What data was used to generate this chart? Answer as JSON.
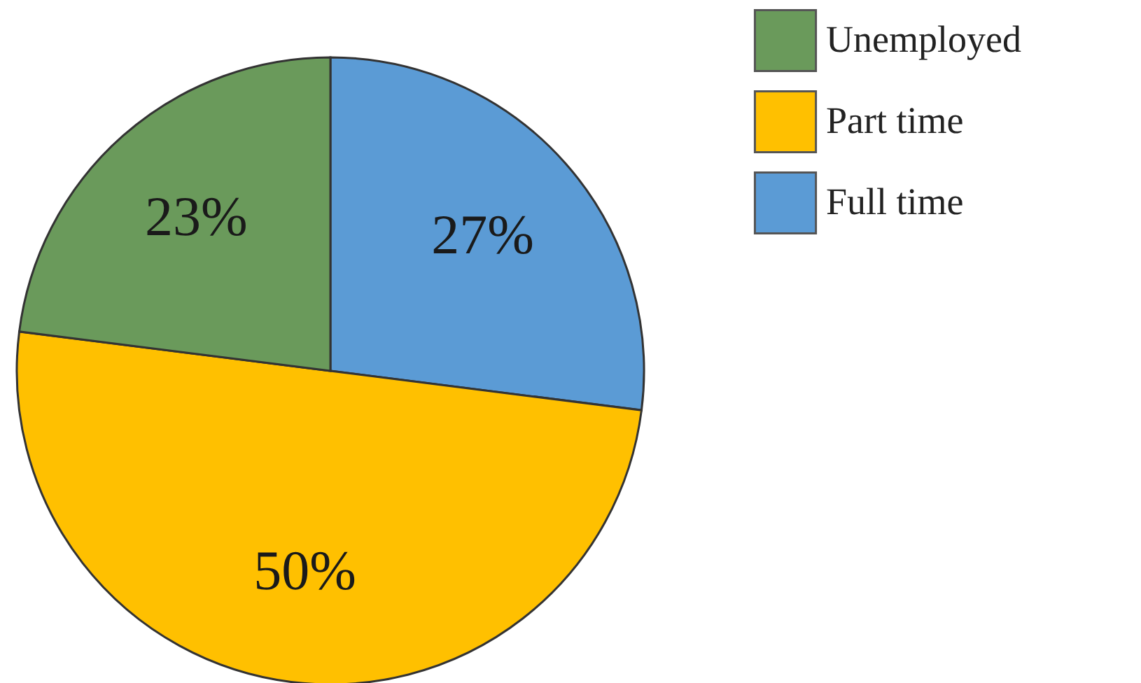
{
  "chart_data": {
    "type": "pie",
    "categories": [
      "Full time",
      "Part time",
      "Unemployed"
    ],
    "values": [
      27,
      50,
      23
    ],
    "colors": [
      "#5b9bd5",
      "#ffc000",
      "#6a9a5b"
    ],
    "value_labels": [
      "27%",
      "50%",
      "23%"
    ],
    "legend": "right"
  }
}
